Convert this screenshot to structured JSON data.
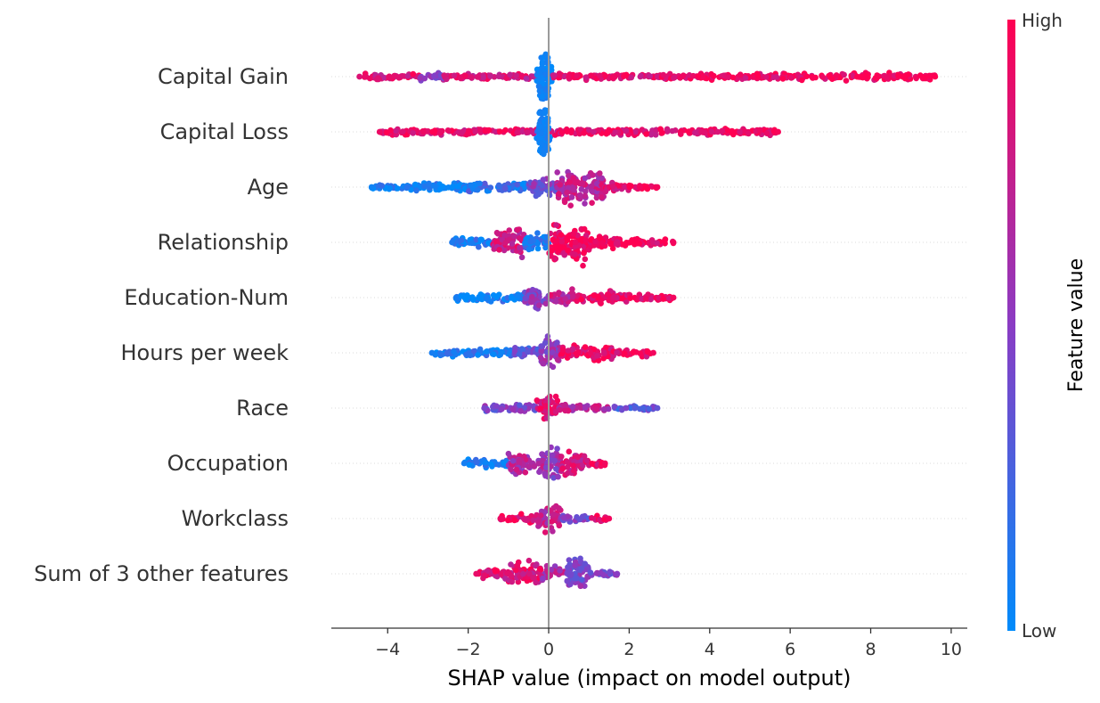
{
  "chart_data": {
    "type": "scatter",
    "subtype": "beeswarm",
    "title": "",
    "xlabel": "SHAP value (impact on model output)",
    "ylabel": "",
    "xlim": [
      -5.4,
      10.4
    ],
    "xticks": [
      -4,
      -2,
      0,
      2,
      4,
      6,
      8,
      10
    ],
    "xtick_labels": [
      "−4",
      "−2",
      "0",
      "2",
      "4",
      "6",
      "8",
      "10"
    ],
    "zero_line": true,
    "grid": false,
    "colorbar": {
      "label": "Feature value",
      "high_label": "High",
      "low_label": "Low",
      "high_color": "#ff0052",
      "mid_color": "#8a3cc4",
      "low_color": "#008bfb"
    },
    "features": [
      {
        "name": "Capital Gain",
        "min": -4.7,
        "max": 9.6,
        "zero_cluster": true,
        "segments": [
          {
            "from": -4.7,
            "to": -3.2,
            "density": 0.06,
            "color": 0.85
          },
          {
            "from": -3.2,
            "to": -2.6,
            "density": 0.12,
            "color": 0.55
          },
          {
            "from": -2.6,
            "to": -0.3,
            "density": 0.05,
            "color": 0.82
          },
          {
            "from": -0.3,
            "to": 0.1,
            "density": 0.45,
            "color": 0.05
          },
          {
            "from": 0.1,
            "to": 3.0,
            "density": 0.05,
            "color": 0.9
          },
          {
            "from": 3.0,
            "to": 6.0,
            "density": 0.06,
            "color": 0.95
          },
          {
            "from": 6.0,
            "to": 9.0,
            "density": 0.09,
            "color": 0.97
          },
          {
            "from": 9.0,
            "to": 9.6,
            "density": 0.05,
            "color": 1.0
          }
        ]
      },
      {
        "name": "Capital Loss",
        "min": -4.2,
        "max": 5.7,
        "zero_cluster": true,
        "segments": [
          {
            "from": -4.2,
            "to": -2.6,
            "density": 0.06,
            "color": 0.92
          },
          {
            "from": -2.6,
            "to": -0.3,
            "density": 0.05,
            "color": 0.88
          },
          {
            "from": -0.3,
            "to": 0.05,
            "density": 0.45,
            "color": 0.05
          },
          {
            "from": 0.05,
            "to": 4.0,
            "density": 0.05,
            "color": 0.9
          },
          {
            "from": 4.0,
            "to": 5.7,
            "density": 0.06,
            "color": 0.97
          }
        ]
      },
      {
        "name": "Age",
        "min": -4.4,
        "max": 2.7,
        "segments": [
          {
            "from": -4.4,
            "to": -3.6,
            "density": 0.04,
            "color": 0.05
          },
          {
            "from": -3.6,
            "to": -2.0,
            "density": 0.15,
            "color": 0.05
          },
          {
            "from": -2.0,
            "to": -0.5,
            "density": 0.2,
            "color": 0.15
          },
          {
            "from": -0.5,
            "to": 0.2,
            "density": 0.4,
            "color": 0.45
          },
          {
            "from": 0.2,
            "to": 1.4,
            "density": 0.75,
            "color": 0.72
          },
          {
            "from": 1.4,
            "to": 2.0,
            "density": 0.15,
            "color": 0.9
          },
          {
            "from": 2.0,
            "to": 2.7,
            "density": 0.04,
            "color": 0.95
          }
        ]
      },
      {
        "name": "Relationship",
        "min": -2.4,
        "max": 3.1,
        "segments": [
          {
            "from": -2.4,
            "to": -1.4,
            "density": 0.15,
            "color": 0.1
          },
          {
            "from": -1.4,
            "to": -0.6,
            "density": 0.65,
            "color": 0.8
          },
          {
            "from": -0.6,
            "to": 0.0,
            "density": 0.4,
            "color": 0.1
          },
          {
            "from": 0.0,
            "to": 1.0,
            "density": 0.95,
            "color": 0.95
          },
          {
            "from": 1.0,
            "to": 2.2,
            "density": 0.2,
            "color": 0.95
          },
          {
            "from": 2.2,
            "to": 3.1,
            "density": 0.05,
            "color": 0.95
          }
        ]
      },
      {
        "name": "Education-Num",
        "min": -2.3,
        "max": 3.1,
        "segments": [
          {
            "from": -2.3,
            "to": -0.6,
            "density": 0.1,
            "color": 0.08
          },
          {
            "from": -0.6,
            "to": 0.0,
            "density": 0.55,
            "color": 0.5
          },
          {
            "from": 0.0,
            "to": 0.6,
            "density": 0.4,
            "color": 0.75
          },
          {
            "from": 0.6,
            "to": 2.0,
            "density": 0.22,
            "color": 0.9
          },
          {
            "from": 2.0,
            "to": 3.1,
            "density": 0.07,
            "color": 0.95
          }
        ]
      },
      {
        "name": "Hours per week",
        "min": -2.9,
        "max": 2.6,
        "segments": [
          {
            "from": -2.9,
            "to": -0.9,
            "density": 0.1,
            "color": 0.08
          },
          {
            "from": -0.9,
            "to": -0.2,
            "density": 0.25,
            "color": 0.35
          },
          {
            "from": -0.2,
            "to": 0.3,
            "density": 0.75,
            "color": 0.55
          },
          {
            "from": 0.3,
            "to": 1.6,
            "density": 0.3,
            "color": 0.9
          },
          {
            "from": 1.6,
            "to": 2.6,
            "density": 0.07,
            "color": 0.95
          }
        ]
      },
      {
        "name": "Race",
        "min": -1.6,
        "max": 2.7,
        "segments": [
          {
            "from": -1.6,
            "to": -0.3,
            "density": 0.12,
            "color": 0.45
          },
          {
            "from": -0.3,
            "to": 0.25,
            "density": 0.6,
            "color": 0.85
          },
          {
            "from": 0.25,
            "to": 1.6,
            "density": 0.1,
            "color": 0.7
          },
          {
            "from": 1.6,
            "to": 2.7,
            "density": 0.04,
            "color": 0.35
          }
        ]
      },
      {
        "name": "Occupation",
        "min": -2.1,
        "max": 1.4,
        "segments": [
          {
            "from": -2.1,
            "to": -1.0,
            "density": 0.15,
            "color": 0.08
          },
          {
            "from": -1.0,
            "to": -0.1,
            "density": 0.5,
            "color": 0.65
          },
          {
            "from": -0.1,
            "to": 0.3,
            "density": 0.9,
            "color": 0.55
          },
          {
            "from": 0.3,
            "to": 0.9,
            "density": 0.55,
            "color": 0.8
          },
          {
            "from": 0.9,
            "to": 1.4,
            "density": 0.12,
            "color": 0.95
          }
        ]
      },
      {
        "name": "Workclass",
        "min": -1.2,
        "max": 1.5,
        "segments": [
          {
            "from": -1.2,
            "to": -0.3,
            "density": 0.1,
            "color": 0.92
          },
          {
            "from": -0.3,
            "to": 0.3,
            "density": 0.6,
            "color": 0.7
          },
          {
            "from": 0.3,
            "to": 1.0,
            "density": 0.1,
            "color": 0.45
          },
          {
            "from": 1.0,
            "to": 1.5,
            "density": 0.04,
            "color": 0.95
          }
        ]
      },
      {
        "name": "Sum of 3 other features",
        "min": -1.8,
        "max": 1.7,
        "segments": [
          {
            "from": -1.8,
            "to": -1.1,
            "density": 0.15,
            "color": 0.9
          },
          {
            "from": -1.1,
            "to": -0.2,
            "density": 0.55,
            "color": 0.85
          },
          {
            "from": -0.2,
            "to": 0.4,
            "density": 0.3,
            "color": 0.65
          },
          {
            "from": 0.4,
            "to": 1.0,
            "density": 0.85,
            "color": 0.45
          },
          {
            "from": 1.0,
            "to": 1.7,
            "density": 0.08,
            "color": 0.5
          }
        ]
      }
    ]
  }
}
